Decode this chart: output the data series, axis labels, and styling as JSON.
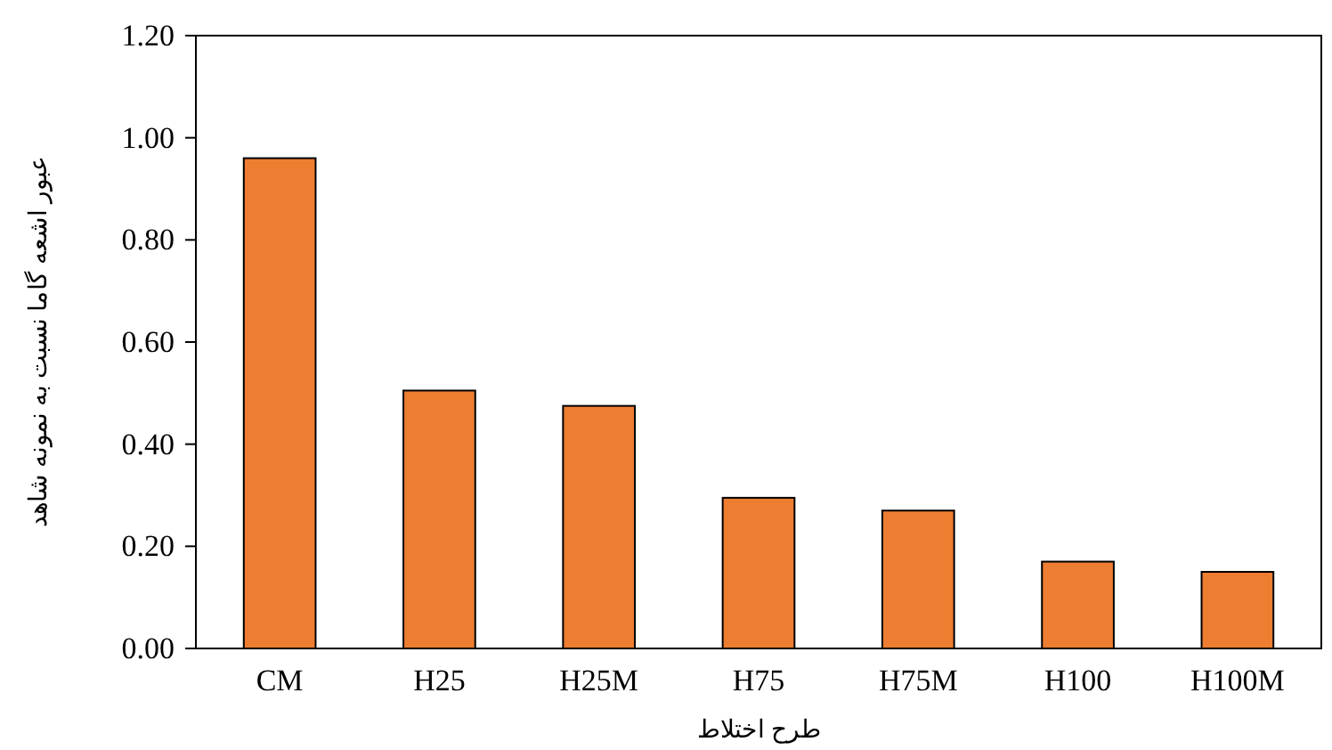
{
  "chart_data": {
    "type": "bar",
    "xlabel": "طرح اختلاط",
    "ylabel": "عبور اشعه گاما نسبت به نمونه شاهد",
    "categories": [
      "CM",
      "H25",
      "H25M",
      "H75",
      "H75M",
      "H100",
      "H100M"
    ],
    "values": [
      0.96,
      0.505,
      0.475,
      0.295,
      0.27,
      0.17,
      0.15
    ],
    "color": "#ed7d31",
    "ylim": [
      0,
      1.2
    ],
    "yticks": [
      {
        "value": 0,
        "label": "0.00"
      },
      {
        "value": 0.2,
        "label": "0.20"
      },
      {
        "value": 0.4,
        "label": "0.40"
      },
      {
        "value": 0.6,
        "label": "0.60"
      },
      {
        "value": 0.8,
        "label": "0.80"
      },
      {
        "value": 1,
        "label": "1.00"
      },
      {
        "value": 1.2,
        "label": "1.20"
      }
    ],
    "grid": false
  }
}
